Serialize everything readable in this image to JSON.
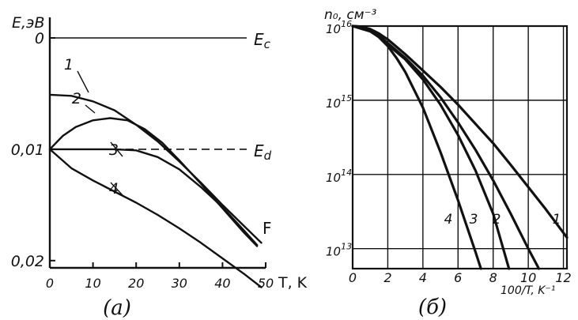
{
  "chart_data": [
    {
      "type": "line",
      "panel_label": "(а)",
      "ylabel": "E,эВ",
      "xlabel": "T, K",
      "xlim": [
        0,
        50
      ],
      "ylim": [
        0,
        0.022
      ],
      "y_inverted": true,
      "grid": false,
      "x_ticks": [
        0,
        10,
        20,
        30,
        40,
        50
      ],
      "x_tick_labels": [
        "0",
        "10",
        "20",
        "30",
        "40",
        "50"
      ],
      "y_ticks": [
        0,
        0.01,
        0.02
      ],
      "y_tick_labels": [
        "0",
        "0,01",
        "0,02"
      ],
      "reference_lines": [
        {
          "label": "Ec",
          "label_main": "E",
          "label_sub": "c",
          "y": 0,
          "style": "solid"
        },
        {
          "label": "Ed",
          "label_main": "E",
          "label_sub": "d",
          "y": 0.01,
          "style": "dashed"
        }
      ],
      "series": [
        {
          "name": "1",
          "x": [
            0,
            5,
            10,
            15,
            20,
            25,
            30,
            35,
            40,
            45,
            49
          ],
          "y": [
            0.0051,
            0.0052,
            0.0057,
            0.0065,
            0.0078,
            0.0093,
            0.0111,
            0.013,
            0.015,
            0.0169,
            0.0184
          ]
        },
        {
          "name": "2",
          "x": [
            0,
            3,
            6,
            10,
            14,
            18,
            22,
            26,
            30,
            35,
            40,
            45,
            48
          ],
          "y": [
            0.01,
            0.0088,
            0.008,
            0.0074,
            0.0072,
            0.0074,
            0.0082,
            0.0094,
            0.011,
            0.0131,
            0.0153,
            0.0175,
            0.0187
          ]
        },
        {
          "name": "3",
          "x": [
            0,
            5,
            10,
            15,
            20,
            25,
            30,
            35,
            40,
            45,
            48
          ],
          "y": [
            0.01,
            0.01,
            0.01,
            0.01,
            0.0101,
            0.0107,
            0.0118,
            0.0134,
            0.0152,
            0.0173,
            0.0186
          ]
        },
        {
          "name": "4",
          "x": [
            0,
            5,
            10,
            15,
            20,
            25,
            30,
            35,
            40,
            45,
            49
          ],
          "y": [
            0.01,
            0.0117,
            0.0128,
            0.0138,
            0.0148,
            0.0159,
            0.0171,
            0.0184,
            0.0198,
            0.0212,
            0.0224
          ]
        }
      ],
      "series_labels": [
        "1",
        "2",
        "3",
        "4"
      ],
      "end_label": "F"
    },
    {
      "type": "line",
      "panel_label": "(б)",
      "ylabel": "n₀, см⁻³",
      "xlabel": "100/T, K⁻¹",
      "xlim": [
        0,
        12.2
      ],
      "ylim": [
        12.73,
        16
      ],
      "y_scale": "log",
      "grid": true,
      "x_ticks": [
        0,
        2,
        4,
        6,
        8,
        10,
        12
      ],
      "x_tick_labels": [
        "0",
        "2",
        "4",
        "6",
        "8",
        "10",
        "12"
      ],
      "y_tick_labels": [
        {
          "exp": 16,
          "base": "10",
          "sup": "16"
        },
        {
          "exp": 15,
          "base": "10",
          "sup": "15"
        },
        {
          "exp": 14,
          "base": "10",
          "sup": "14"
        },
        {
          "exp": 13,
          "base": "10",
          "sup": "13"
        }
      ],
      "series": [
        {
          "name": "1",
          "x": [
            0,
            0.5,
            1,
            1.5,
            2,
            3,
            4,
            5,
            6,
            7,
            8,
            9,
            10,
            11,
            12.2
          ],
          "log10_y": [
            16.0,
            15.99,
            15.96,
            15.9,
            15.82,
            15.62,
            15.4,
            15.18,
            14.94,
            14.68,
            14.42,
            14.13,
            13.83,
            13.53,
            13.15
          ]
        },
        {
          "name": "2",
          "x": [
            0,
            0.5,
            1,
            1.5,
            2,
            3,
            4,
            5,
            6,
            7,
            8,
            9,
            10,
            10.6
          ],
          "log10_y": [
            16.0,
            15.99,
            15.95,
            15.87,
            15.77,
            15.57,
            15.33,
            15.04,
            14.7,
            14.33,
            13.92,
            13.47,
            13.0,
            12.73
          ]
        },
        {
          "name": "3",
          "x": [
            0,
            1,
            1.5,
            2,
            3,
            4,
            5,
            6,
            7,
            8,
            8.9
          ],
          "log10_y": [
            16.0,
            15.93,
            15.86,
            15.75,
            15.55,
            15.28,
            14.94,
            14.53,
            14.05,
            13.47,
            12.73
          ]
        },
        {
          "name": "4",
          "x": [
            0,
            1,
            1.5,
            2,
            2.5,
            3,
            4,
            5,
            6,
            7,
            7.3
          ],
          "log10_y": [
            16.0,
            15.93,
            15.85,
            15.73,
            15.57,
            15.38,
            14.9,
            14.3,
            13.65,
            12.95,
            12.73
          ]
        }
      ],
      "series_labels": [
        "4",
        "3",
        "2",
        "1"
      ]
    }
  ]
}
